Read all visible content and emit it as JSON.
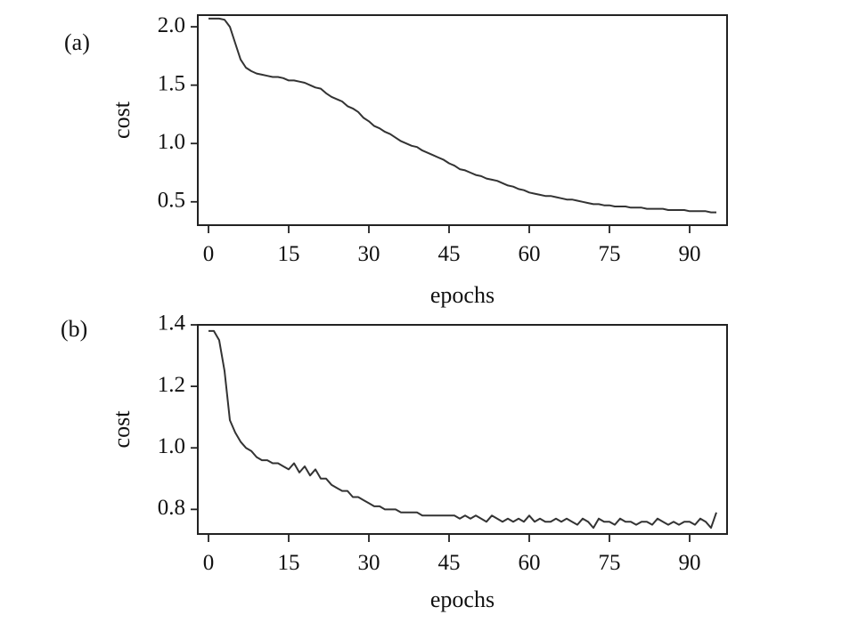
{
  "chart_data": [
    {
      "type": "line",
      "panel_label": "(a)",
      "xlabel": "epochs",
      "ylabel": "cost",
      "xlim": [
        -2,
        97
      ],
      "ylim": [
        0.3,
        2.1
      ],
      "xticks": [
        0,
        15,
        30,
        45,
        60,
        75,
        90
      ],
      "xtick_labels": [
        "0",
        "15",
        "30",
        "45",
        "60",
        "75",
        "90"
      ],
      "yticks": [
        0.5,
        1.0,
        1.5,
        2.0
      ],
      "ytick_labels": [
        "0.5",
        "1.0",
        "1.5",
        "2.0"
      ],
      "grid": false,
      "series": [
        {
          "x": [
            0,
            1,
            2,
            3,
            4,
            5,
            6,
            7,
            8,
            9,
            10,
            11,
            12,
            13,
            14,
            15,
            16,
            17,
            18,
            19,
            20,
            21,
            22,
            23,
            24,
            25,
            26,
            27,
            28,
            29,
            30,
            31,
            32,
            33,
            34,
            35,
            36,
            37,
            38,
            39,
            40,
            41,
            42,
            43,
            44,
            45,
            46,
            47,
            48,
            49,
            50,
            51,
            52,
            53,
            54,
            55,
            56,
            57,
            58,
            59,
            60,
            61,
            62,
            63,
            64,
            65,
            66,
            67,
            68,
            69,
            70,
            71,
            72,
            73,
            74,
            75,
            76,
            77,
            78,
            79,
            80,
            81,
            82,
            83,
            84,
            85,
            86,
            87,
            88,
            89,
            90,
            91,
            92,
            93,
            94,
            95
          ],
          "y": [
            2.07,
            2.07,
            2.07,
            2.06,
            2.0,
            1.86,
            1.72,
            1.65,
            1.62,
            1.6,
            1.59,
            1.58,
            1.57,
            1.57,
            1.56,
            1.54,
            1.54,
            1.53,
            1.52,
            1.5,
            1.48,
            1.47,
            1.43,
            1.4,
            1.38,
            1.36,
            1.32,
            1.3,
            1.27,
            1.22,
            1.19,
            1.15,
            1.13,
            1.1,
            1.08,
            1.05,
            1.02,
            1.0,
            0.98,
            0.97,
            0.94,
            0.92,
            0.9,
            0.88,
            0.86,
            0.83,
            0.81,
            0.78,
            0.77,
            0.75,
            0.73,
            0.72,
            0.7,
            0.69,
            0.68,
            0.66,
            0.64,
            0.63,
            0.61,
            0.6,
            0.58,
            0.57,
            0.56,
            0.55,
            0.55,
            0.54,
            0.53,
            0.52,
            0.52,
            0.51,
            0.5,
            0.49,
            0.48,
            0.48,
            0.47,
            0.47,
            0.46,
            0.46,
            0.46,
            0.45,
            0.45,
            0.45,
            0.44,
            0.44,
            0.44,
            0.44,
            0.43,
            0.43,
            0.43,
            0.43,
            0.42,
            0.42,
            0.42,
            0.42,
            0.41,
            0.41
          ]
        }
      ]
    },
    {
      "type": "line",
      "panel_label": "(b)",
      "xlabel": "epochs",
      "ylabel": "cost",
      "xlim": [
        -2,
        97
      ],
      "ylim": [
        0.72,
        1.4
      ],
      "xticks": [
        0,
        15,
        30,
        45,
        60,
        75,
        90
      ],
      "xtick_labels": [
        "0",
        "15",
        "30",
        "45",
        "60",
        "75",
        "90"
      ],
      "yticks": [
        0.8,
        1.0,
        1.2,
        1.4
      ],
      "ytick_labels": [
        "0.8",
        "1.0",
        "1.2",
        "1.4"
      ],
      "grid": false,
      "series": [
        {
          "x": [
            0,
            1,
            2,
            3,
            4,
            5,
            6,
            7,
            8,
            9,
            10,
            11,
            12,
            13,
            14,
            15,
            16,
            17,
            18,
            19,
            20,
            21,
            22,
            23,
            24,
            25,
            26,
            27,
            28,
            29,
            30,
            31,
            32,
            33,
            34,
            35,
            36,
            37,
            38,
            39,
            40,
            41,
            42,
            43,
            44,
            45,
            46,
            47,
            48,
            49,
            50,
            51,
            52,
            53,
            54,
            55,
            56,
            57,
            58,
            59,
            60,
            61,
            62,
            63,
            64,
            65,
            66,
            67,
            68,
            69,
            70,
            71,
            72,
            73,
            74,
            75,
            76,
            77,
            78,
            79,
            80,
            81,
            82,
            83,
            84,
            85,
            86,
            87,
            88,
            89,
            90,
            91,
            92,
            93,
            94,
            95
          ],
          "y": [
            1.38,
            1.38,
            1.35,
            1.25,
            1.09,
            1.05,
            1.02,
            1.0,
            0.99,
            0.97,
            0.96,
            0.96,
            0.95,
            0.95,
            0.94,
            0.93,
            0.95,
            0.92,
            0.94,
            0.91,
            0.93,
            0.9,
            0.9,
            0.88,
            0.87,
            0.86,
            0.86,
            0.84,
            0.84,
            0.83,
            0.82,
            0.81,
            0.81,
            0.8,
            0.8,
            0.8,
            0.79,
            0.79,
            0.79,
            0.79,
            0.78,
            0.78,
            0.78,
            0.78,
            0.78,
            0.78,
            0.78,
            0.77,
            0.78,
            0.77,
            0.78,
            0.77,
            0.76,
            0.78,
            0.77,
            0.76,
            0.77,
            0.76,
            0.77,
            0.76,
            0.78,
            0.76,
            0.77,
            0.76,
            0.76,
            0.77,
            0.76,
            0.77,
            0.76,
            0.75,
            0.77,
            0.76,
            0.74,
            0.77,
            0.76,
            0.76,
            0.75,
            0.77,
            0.76,
            0.76,
            0.75,
            0.76,
            0.76,
            0.75,
            0.77,
            0.76,
            0.75,
            0.76,
            0.75,
            0.76,
            0.76,
            0.75,
            0.77,
            0.76,
            0.74,
            0.79
          ]
        }
      ]
    }
  ]
}
